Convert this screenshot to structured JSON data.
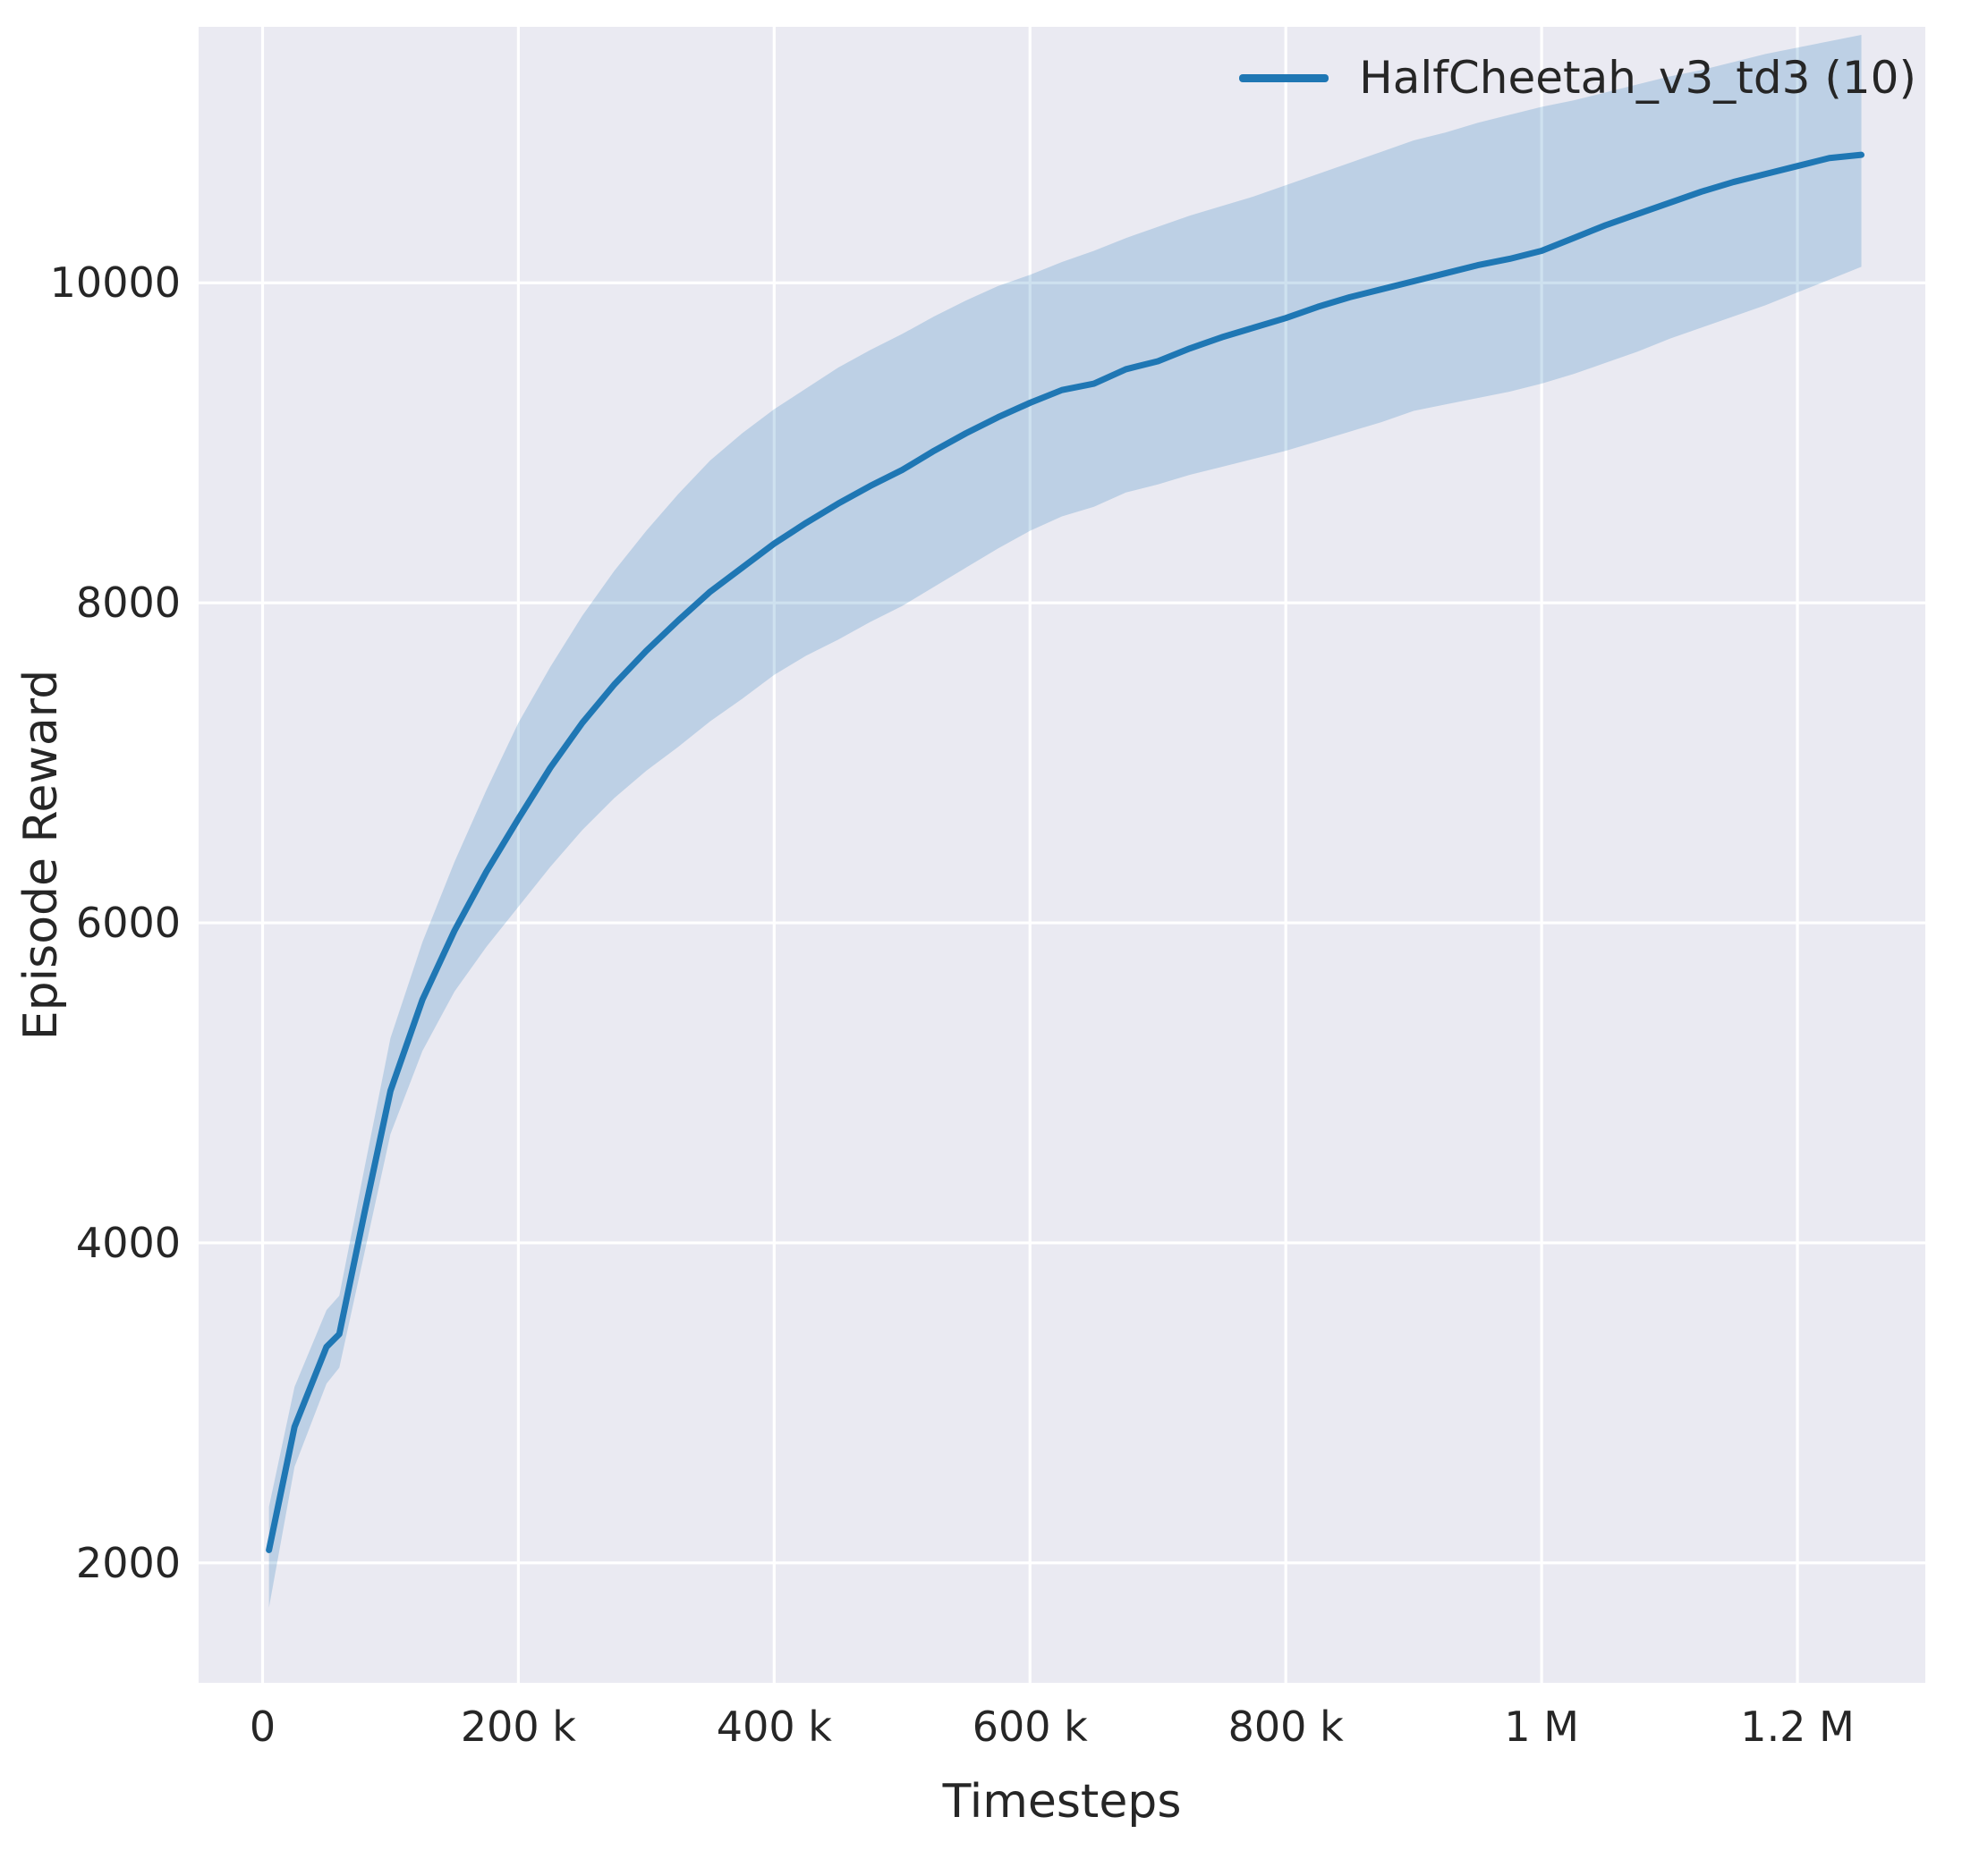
{
  "colors": {
    "figure_bg": "#ffffff",
    "axes_bg": "#eaeaf2",
    "grid": "#ffffff",
    "line": "#1f77b4",
    "band": "#1f77b4",
    "band_opacity": 0.22,
    "text": "#262626"
  },
  "chart_data": {
    "type": "line",
    "title": "",
    "xlabel": "Timesteps",
    "ylabel": "Episode Reward",
    "grid": true,
    "legend_position": "upper right",
    "xlim": [
      -50000,
      1300000
    ],
    "ylim": [
      1250,
      11600
    ],
    "x_ticks": [
      {
        "value": 0,
        "label": "0"
      },
      {
        "value": 200000,
        "label": "200 k"
      },
      {
        "value": 400000,
        "label": "400 k"
      },
      {
        "value": 600000,
        "label": "600 k"
      },
      {
        "value": 800000,
        "label": "800 k"
      },
      {
        "value": 1000000,
        "label": "1 M"
      },
      {
        "value": 1200000,
        "label": "1.2 M"
      }
    ],
    "y_ticks": [
      {
        "value": 2000,
        "label": "2000"
      },
      {
        "value": 4000,
        "label": "4000"
      },
      {
        "value": 6000,
        "label": "6000"
      },
      {
        "value": 8000,
        "label": "8000"
      },
      {
        "value": 10000,
        "label": "10000"
      }
    ],
    "legend": [
      {
        "label": "HalfCheetah_v3_td3 (10)",
        "color": "#1f77b4"
      }
    ],
    "series": [
      {
        "name": "HalfCheetah_v3_td3 (10)",
        "color": "#1f77b4",
        "x": [
          5000,
          25000,
          50000,
          60000,
          80000,
          100000,
          125000,
          150000,
          175000,
          200000,
          225000,
          250000,
          275000,
          300000,
          325000,
          350000,
          375000,
          400000,
          425000,
          450000,
          475000,
          500000,
          525000,
          550000,
          575000,
          600000,
          625000,
          650000,
          675000,
          700000,
          725000,
          750000,
          775000,
          800000,
          825000,
          850000,
          875000,
          900000,
          925000,
          950000,
          975000,
          1000000,
          1025000,
          1050000,
          1075000,
          1100000,
          1125000,
          1150000,
          1175000,
          1200000,
          1225000,
          1250000
        ],
        "mean": [
          2080,
          2850,
          3350,
          3430,
          4200,
          4950,
          5520,
          5950,
          6320,
          6650,
          6970,
          7250,
          7490,
          7700,
          7890,
          8070,
          8220,
          8370,
          8500,
          8620,
          8730,
          8830,
          8950,
          9060,
          9160,
          9250,
          9330,
          9370,
          9460,
          9510,
          9590,
          9660,
          9720,
          9780,
          9850,
          9910,
          9960,
          10010,
          10060,
          10110,
          10150,
          10200,
          10280,
          10360,
          10430,
          10500,
          10570,
          10630,
          10680,
          10730,
          10780,
          10800
        ],
        "lower": [
          1720,
          2600,
          3120,
          3220,
          3950,
          4680,
          5200,
          5570,
          5850,
          6100,
          6350,
          6580,
          6780,
          6950,
          7100,
          7260,
          7400,
          7550,
          7670,
          7770,
          7880,
          7980,
          8100,
          8220,
          8340,
          8450,
          8540,
          8600,
          8690,
          8740,
          8800,
          8850,
          8900,
          8950,
          9010,
          9070,
          9130,
          9200,
          9240,
          9280,
          9320,
          9370,
          9430,
          9500,
          9570,
          9650,
          9720,
          9790,
          9860,
          9940,
          10020,
          10100
        ],
        "upper": [
          2350,
          3100,
          3580,
          3670,
          4480,
          5280,
          5880,
          6380,
          6830,
          7250,
          7600,
          7920,
          8200,
          8450,
          8680,
          8890,
          9060,
          9210,
          9340,
          9470,
          9580,
          9680,
          9790,
          9890,
          9980,
          10050,
          10130,
          10200,
          10280,
          10350,
          10420,
          10480,
          10540,
          10610,
          10680,
          10750,
          10820,
          10890,
          10940,
          11000,
          11050,
          11100,
          11140,
          11190,
          11240,
          11290,
          11330,
          11380,
          11430,
          11470,
          11510,
          11550
        ]
      }
    ]
  }
}
